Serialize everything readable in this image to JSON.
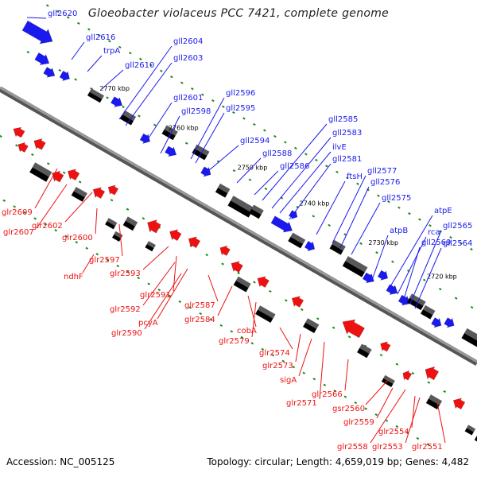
{
  "title": "Gloeobacter violaceus PCC 7421, complete genome",
  "accession": "Accession: NC_005125",
  "summary": "Topology: circular; Length: 4,659,019 bp; Genes: 4,482",
  "colors": {
    "forward": "#1a1aee",
    "reverse": "#ee1111",
    "backbone": "#808080",
    "tick": "#1a8a1a"
  },
  "kbp_markers": [
    "2770 kbp",
    "2760 kbp",
    "2750 kbp",
    "2740 kbp",
    "2730 kbp",
    "2720 kbp"
  ],
  "forward_genes": [
    "gll2620",
    "gll2616",
    "trpA",
    "gll2610",
    "gll2604",
    "gll2603",
    "gll2601",
    "gll2598",
    "gll2596",
    "gll2595",
    "gll2594",
    "gll2588",
    "gll2586",
    "gll2585",
    "gll2583",
    "ilvE",
    "gll2581",
    "ftsH",
    "gll2577",
    "gll2576",
    "gll2575",
    "atpB",
    "atpE",
    "rca",
    "gll2569",
    "gll2565",
    "gll2564"
  ],
  "reverse_genes": [
    "glr2609",
    "glr2607",
    "glr2602",
    "glr2600",
    "glr2597",
    "ndhF",
    "glr2593",
    "glr2591",
    "glr2592",
    "pcyA",
    "glr2590",
    "glr2587",
    "glr2584",
    "cobA",
    "glr2579",
    "glr2574",
    "glr2573",
    "sigA",
    "glr2571",
    "glr2566",
    "gsr2560",
    "glr2559",
    "glr2554",
    "glr2558",
    "glr2553",
    "glr2551"
  ]
}
